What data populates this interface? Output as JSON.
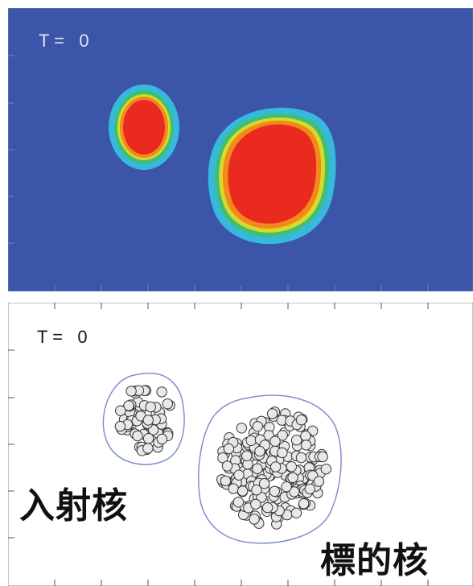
{
  "top_panel": {
    "time_label": "T =   0",
    "colors": {
      "background": "#3b55a8",
      "core": "#ea2a1f",
      "ring_orange": "#f08a1c",
      "ring_yellow": "#d9d92a",
      "ring_green": "#3fbf73",
      "ring_cyan": "#37c4e2"
    }
  },
  "bottom_panel": {
    "time_label": "T =   0",
    "colors": {
      "background": "#ffffff",
      "outline": "#7f8fd0",
      "nucleon_fill": "#e8e8e8",
      "nucleon_stroke": "#333333"
    }
  },
  "labels": {
    "projectile": "入射核",
    "target": "標的核"
  }
}
